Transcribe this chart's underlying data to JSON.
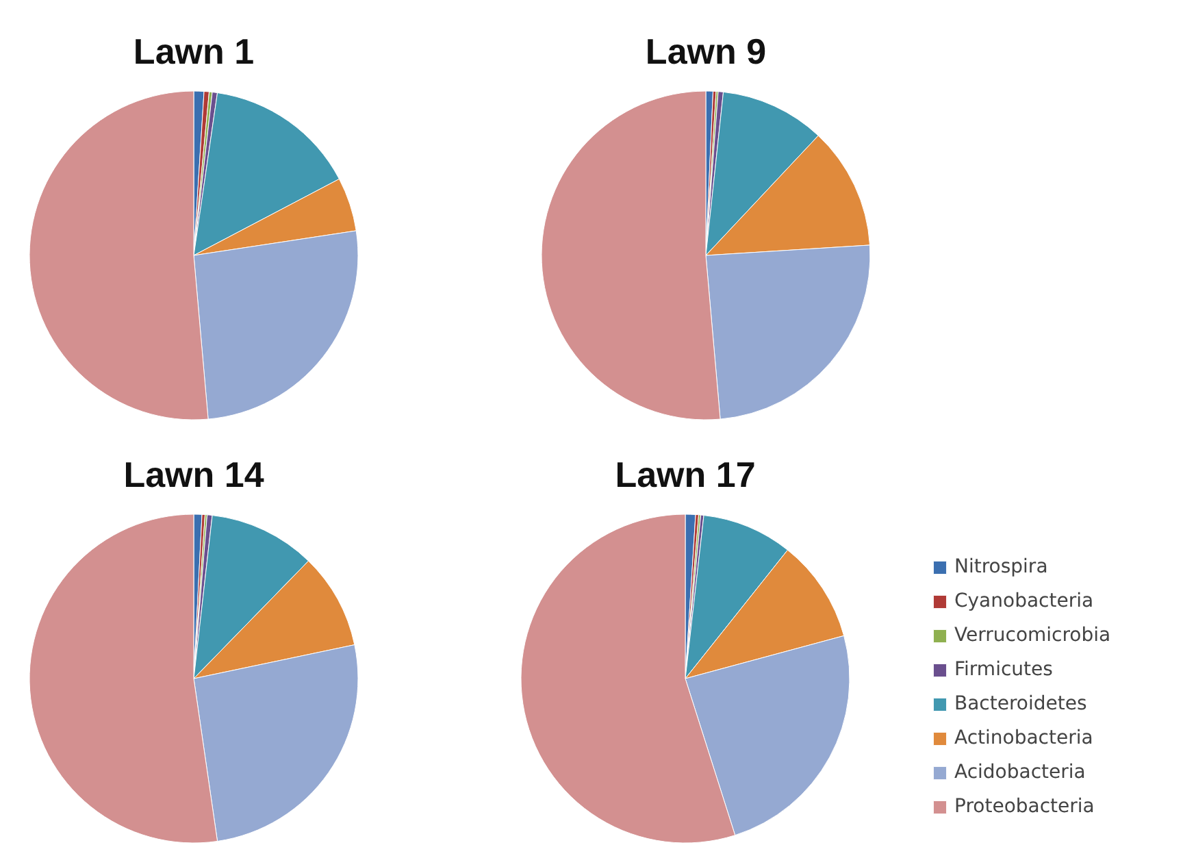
{
  "chart_data": {
    "type": "pie",
    "categories": [
      "Nitrospira",
      "Cyanobacteria",
      "Verrucomicrobia",
      "Firmicutes",
      "Bacteroidetes",
      "Actinobacteria",
      "Acidobacteria",
      "Proteobacteria"
    ],
    "colors": [
      "#3b6fb0",
      "#b03a36",
      "#8fb050",
      "#6a4f8e",
      "#4198b0",
      "#e08a3c",
      "#95a9d2",
      "#d39090"
    ],
    "legend": "right",
    "series": [
      {
        "name": "Lawn 1",
        "values": [
          1,
          0.5,
          0.3,
          0.5,
          15,
          5.3,
          26,
          51.4
        ]
      },
      {
        "name": "Lawn 9",
        "values": [
          0.7,
          0.3,
          0.2,
          0.5,
          10.3,
          12,
          24.6,
          51.4
        ]
      },
      {
        "name": "Lawn 14",
        "values": [
          0.8,
          0.3,
          0.2,
          0.5,
          10.5,
          9.4,
          26,
          52.3
        ]
      },
      {
        "name": "Lawn 17",
        "values": [
          1,
          0.3,
          0.2,
          0.3,
          8.9,
          10.1,
          24.3,
          54.9
        ]
      }
    ]
  }
}
